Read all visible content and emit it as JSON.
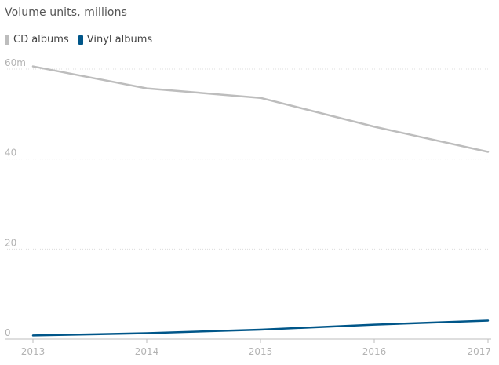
{
  "chart_data": {
    "type": "line",
    "title": "",
    "subtitle": "Volume units, millions",
    "xlabel": "",
    "ylabel": "",
    "x": [
      "2013",
      "2014",
      "2015",
      "2016",
      "2017"
    ],
    "ylim": [
      0,
      60
    ],
    "y_ticks": [
      {
        "value": 60,
        "label": "60m"
      },
      {
        "value": 40,
        "label": "40"
      },
      {
        "value": 20,
        "label": "20"
      },
      {
        "value": 0,
        "label": "0"
      }
    ],
    "grid": true,
    "legend_position": "top-left",
    "series": [
      {
        "name": "CD albums",
        "color": "#bdbdbd",
        "values": [
          60.6,
          55.7,
          53.6,
          47.2,
          41.6
        ]
      },
      {
        "name": "Vinyl albums",
        "color": "#005689",
        "values": [
          0.8,
          1.3,
          2.1,
          3.2,
          4.1
        ]
      }
    ]
  }
}
